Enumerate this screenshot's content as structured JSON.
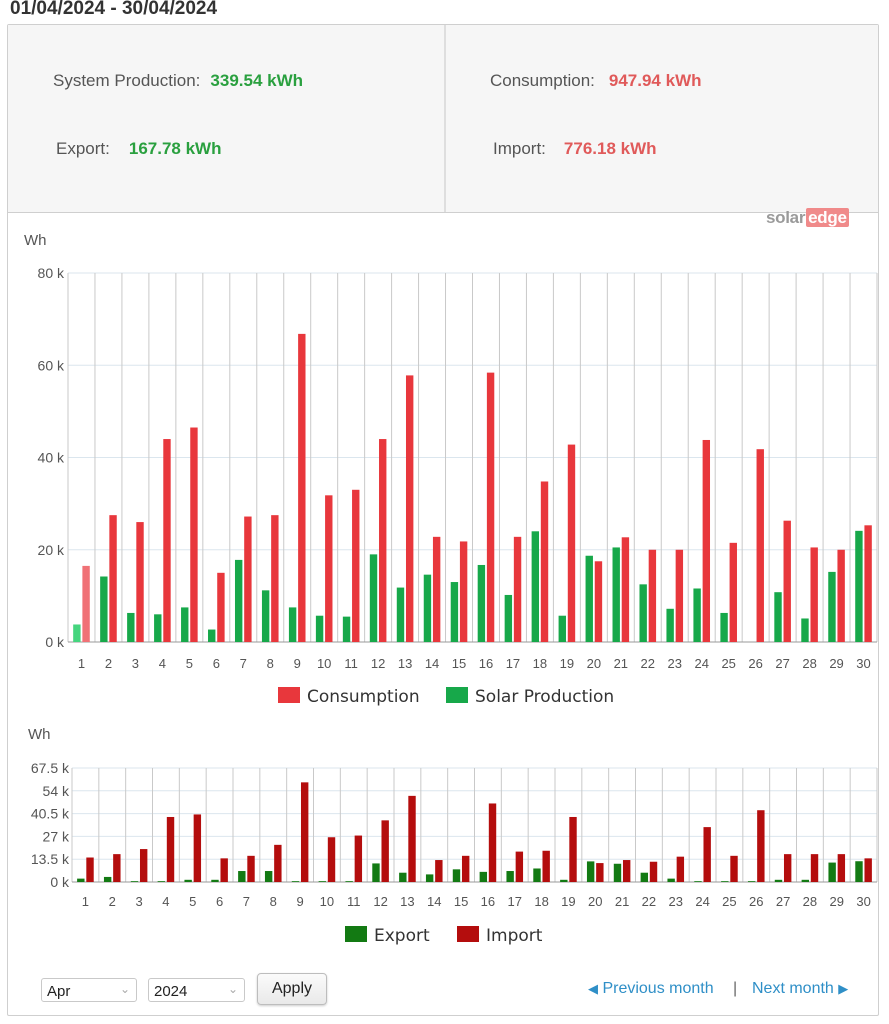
{
  "header": {
    "date_range": "01/04/2024 - 30/04/2024"
  },
  "summary": {
    "production": {
      "label": "System Production:",
      "value": "339.54 kWh"
    },
    "export": {
      "label": "Export:",
      "value": "167.78 kWh"
    },
    "consumption": {
      "label": "Consumption:",
      "value": "947.94 kWh"
    },
    "import": {
      "label": "Import:",
      "value": "776.18 kWh"
    }
  },
  "logo": {
    "part1": "solar",
    "part2": "edge"
  },
  "colors": {
    "consumption": "#e8373c",
    "consumption_first": "#f07176",
    "production": "#17a84a",
    "production_first": "#45d57e",
    "export": "#137a13",
    "import": "#b40d0d",
    "value_green": "#2aa03f",
    "value_red": "#e05a5a"
  },
  "chart_data": [
    {
      "type": "bar",
      "ylabel": "Wh",
      "ylim": [
        0,
        80000
      ],
      "ytick_labels": [
        "0 k",
        "20 k",
        "40 k",
        "60 k",
        "80 k"
      ],
      "ytick_values": [
        0,
        20000,
        40000,
        60000,
        80000
      ],
      "grid": true,
      "legend_position": "bottom",
      "categories": [
        "1",
        "2",
        "3",
        "4",
        "5",
        "6",
        "7",
        "8",
        "9",
        "10",
        "11",
        "12",
        "13",
        "14",
        "15",
        "16",
        "17",
        "18",
        "19",
        "20",
        "21",
        "22",
        "23",
        "24",
        "25",
        "26",
        "27",
        "28",
        "29",
        "30"
      ],
      "series": [
        {
          "name": "Consumption",
          "color": "#e8373c",
          "values": [
            16500,
            27500,
            26000,
            44000,
            46500,
            15000,
            27200,
            27500,
            66800,
            31800,
            33000,
            44000,
            57800,
            22800,
            21800,
            58400,
            22800,
            34800,
            42800,
            17500,
            22700,
            20000,
            20000,
            43800,
            21500,
            41800,
            26300,
            20500,
            20000,
            25300
          ]
        },
        {
          "name": "Solar Production",
          "color": "#17a84a",
          "values": [
            3800,
            14200,
            6300,
            6000,
            7500,
            2700,
            17800,
            11200,
            7500,
            5700,
            5500,
            19000,
            11800,
            14600,
            13000,
            16700,
            10200,
            24000,
            5700,
            18700,
            20500,
            12500,
            7200,
            11600,
            6300,
            0,
            10800,
            5100,
            15200,
            24100
          ]
        }
      ]
    },
    {
      "type": "bar",
      "ylabel": "Wh",
      "ylim": [
        0,
        67500
      ],
      "ytick_labels": [
        "0 k",
        "13.5 k",
        "27 k",
        "40.5 k",
        "54 k",
        "67.5 k"
      ],
      "ytick_values": [
        0,
        13500,
        27000,
        40500,
        54000,
        67500
      ],
      "grid": true,
      "legend_position": "bottom",
      "categories": [
        "1",
        "2",
        "3",
        "4",
        "5",
        "6",
        "7",
        "8",
        "9",
        "10",
        "11",
        "12",
        "13",
        "14",
        "15",
        "16",
        "17",
        "18",
        "19",
        "20",
        "21",
        "22",
        "23",
        "24",
        "25",
        "26",
        "27",
        "28",
        "29",
        "30"
      ],
      "series": [
        {
          "name": "Export",
          "color": "#137a13",
          "values": [
            2000,
            3000,
            500,
            500,
            1300,
            1300,
            6500,
            6500,
            500,
            500,
            500,
            11000,
            5500,
            4500,
            7500,
            6000,
            6500,
            8000,
            1300,
            12200,
            10800,
            5500,
            2000,
            500,
            500,
            500,
            1300,
            1300,
            11500,
            12300
          ]
        },
        {
          "name": "Import",
          "color": "#b40d0d",
          "values": [
            14500,
            16500,
            19500,
            38500,
            40000,
            14000,
            15500,
            22000,
            59000,
            26500,
            27500,
            36500,
            51000,
            13000,
            15500,
            46500,
            18000,
            18500,
            38500,
            11200,
            13000,
            12000,
            15000,
            32500,
            15500,
            42500,
            16500,
            16500,
            16500,
            14000
          ]
        }
      ]
    }
  ],
  "controls": {
    "month": "Apr",
    "year": "2024",
    "apply": "Apply",
    "previous": "Previous month",
    "separator": "|",
    "next": "Next month"
  }
}
